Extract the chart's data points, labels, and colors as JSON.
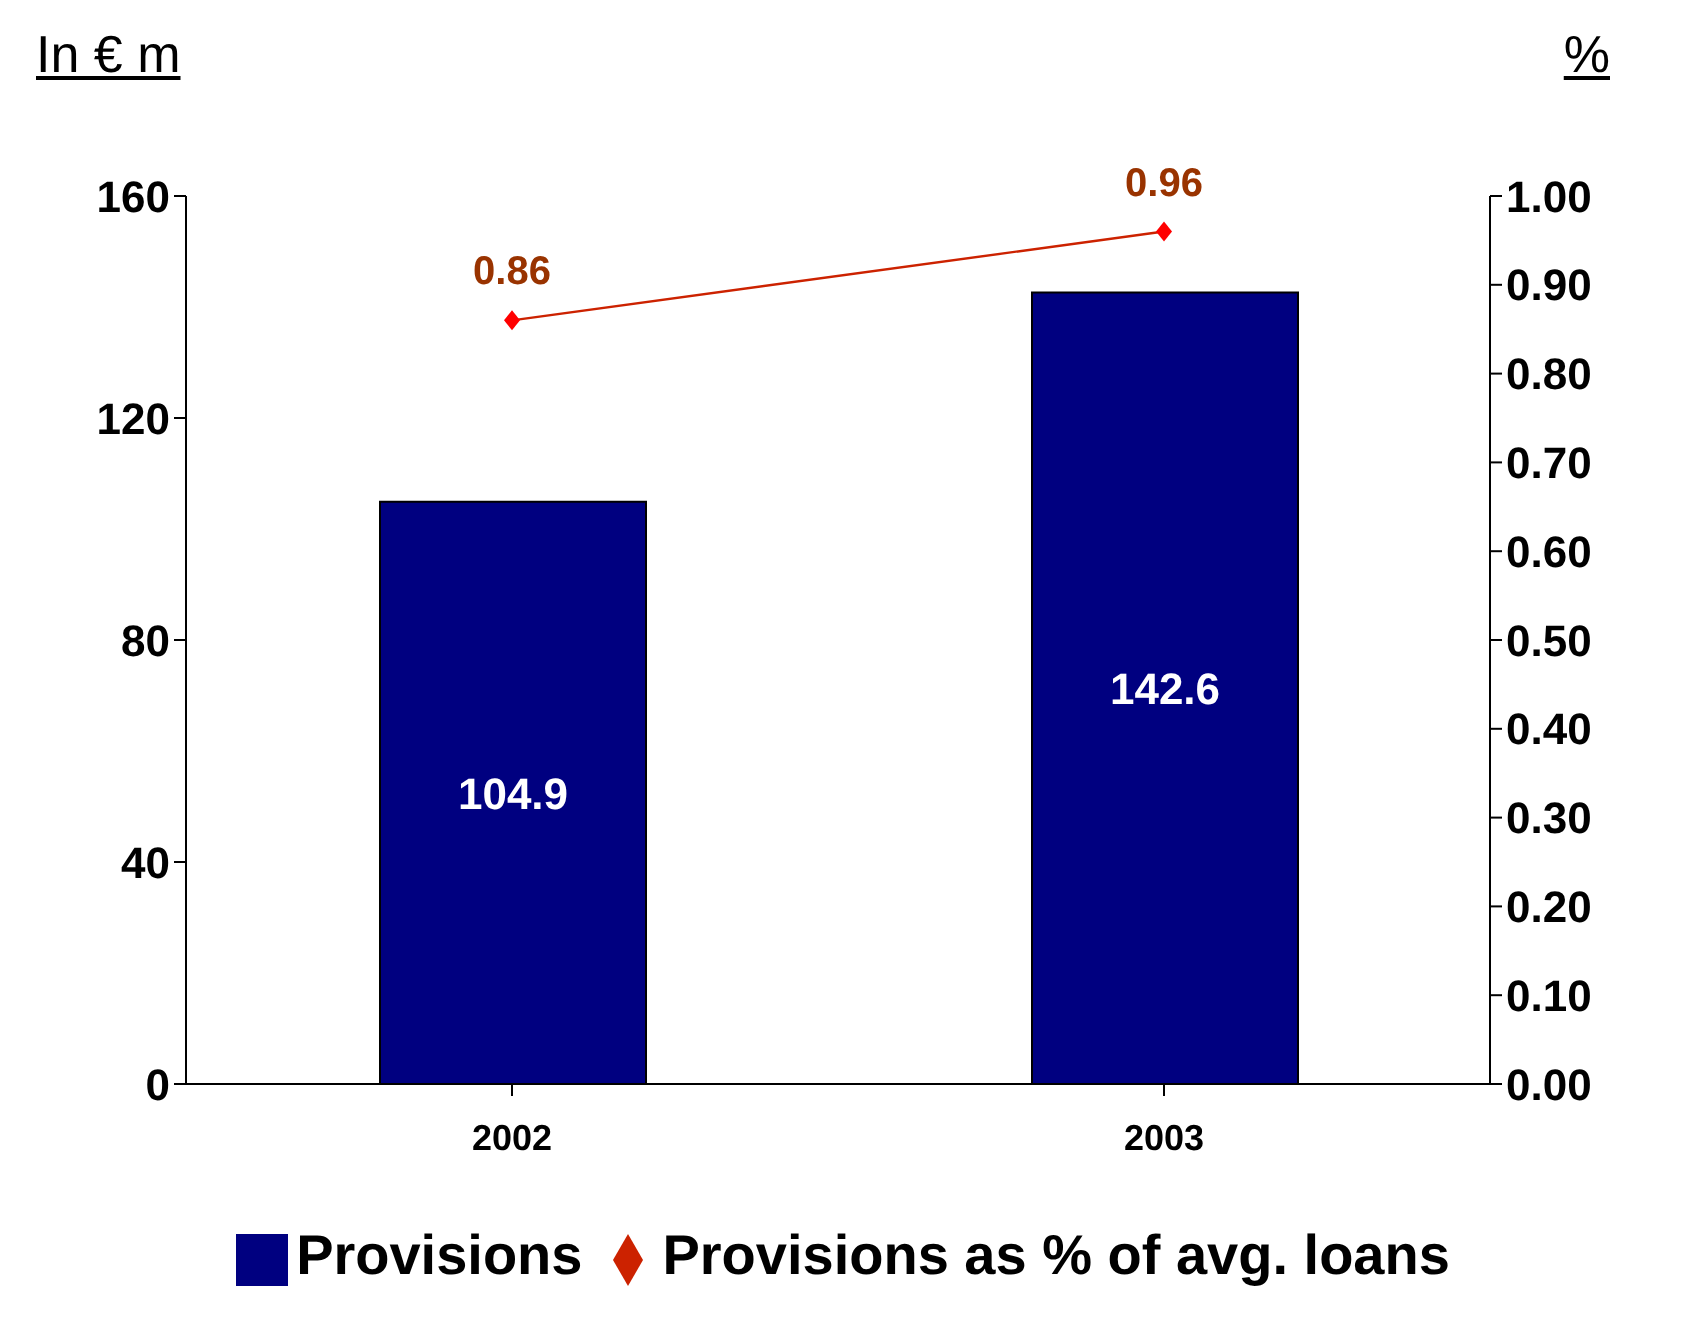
{
  "chart_data": {
    "type": "bar",
    "categories": [
      "2002",
      "2003"
    ],
    "ylabel": "In € m",
    "y2label": "%",
    "series": [
      {
        "name": "Provisions",
        "color": "#000080",
        "values": [
          104.9,
          142.6
        ]
      },
      {
        "name": "Provisions as % of avg. loans",
        "type": "line",
        "axis": "y2",
        "color": "#cc2200",
        "values": [
          0.86,
          0.96
        ]
      }
    ],
    "ylim": [
      0,
      160
    ],
    "yticks": [
      0,
      40,
      80,
      120,
      160
    ],
    "y2lim": [
      0,
      1
    ],
    "y2ticks": [
      {
        "value": 0,
        "label": "0.00"
      },
      {
        "value": 0.1,
        "label": "0.10"
      },
      {
        "value": 0.2,
        "label": "0.20"
      },
      {
        "value": 0.3,
        "label": "0.30"
      },
      {
        "value": 0.4,
        "label": "0.40"
      },
      {
        "value": 0.5,
        "label": "0.50"
      },
      {
        "value": 0.6,
        "label": "0.60"
      },
      {
        "value": 0.7,
        "label": "0.70"
      },
      {
        "value": 0.8,
        "label": "0.80"
      },
      {
        "value": 0.9,
        "label": "0.90"
      },
      {
        "value": 1,
        "label": "1.00"
      }
    ],
    "data_labels": true,
    "grid": false,
    "legend": "bottom",
    "marker": "diamond"
  }
}
